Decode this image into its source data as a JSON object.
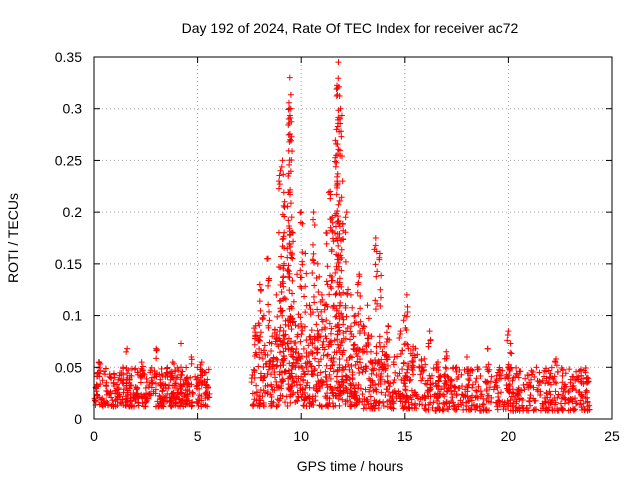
{
  "chart_data": {
    "type": "scatter",
    "title": "Day 192 of 2024, Rate Of TEC Index for receiver ac72",
    "xlabel": "GPS time / hours",
    "ylabel": "ROTI / TECUs",
    "xlim": [
      0,
      25
    ],
    "ylim": [
      0,
      0.35
    ],
    "xticks": [
      0,
      5,
      10,
      15,
      20,
      25
    ],
    "xtick_labels": [
      "0",
      "5",
      "10",
      "15",
      "20",
      "25"
    ],
    "yticks": [
      0,
      0.05,
      0.1,
      0.15,
      0.2,
      0.25,
      0.3,
      0.35
    ],
    "ytick_labels": [
      "0",
      "0.05",
      "0.1",
      "0.15",
      "0.2",
      "0.25",
      "0.3",
      "0.35"
    ],
    "grid": true,
    "marker": "+",
    "color": "#ff0000",
    "series": [
      {
        "name": "ROTI",
        "points": [
          [
            0.1,
            0.03
          ],
          [
            0.2,
            0.045
          ],
          [
            0.25,
            0.055
          ],
          [
            0.4,
            0.02
          ],
          [
            0.6,
            0.035
          ],
          [
            0.8,
            0.025
          ],
          [
            1.0,
            0.04
          ],
          [
            1.2,
            0.03
          ],
          [
            1.4,
            0.05
          ],
          [
            1.6,
            0.068
          ],
          [
            1.7,
            0.035
          ],
          [
            1.9,
            0.025
          ],
          [
            2.1,
            0.045
          ],
          [
            2.3,
            0.055
          ],
          [
            2.5,
            0.03
          ],
          [
            2.8,
            0.04
          ],
          [
            3.0,
            0.068
          ],
          [
            3.2,
            0.035
          ],
          [
            3.5,
            0.045
          ],
          [
            3.8,
            0.055
          ],
          [
            4.0,
            0.03
          ],
          [
            4.2,
            0.05
          ],
          [
            4.5,
            0.035
          ],
          [
            4.7,
            0.06
          ],
          [
            5.0,
            0.04
          ],
          [
            5.2,
            0.055
          ],
          [
            5.4,
            0.045
          ],
          [
            5.5,
            0.03
          ],
          [
            4.2,
            0.073
          ],
          [
            2.6,
            0.02
          ],
          [
            7.8,
            0.09
          ],
          [
            8.0,
            0.13
          ],
          [
            8.2,
            0.1
          ],
          [
            8.4,
            0.155
          ],
          [
            8.6,
            0.08
          ],
          [
            8.8,
            0.12
          ],
          [
            9.0,
            0.24
          ],
          [
            9.1,
            0.25
          ],
          [
            9.2,
            0.21
          ],
          [
            9.4,
            0.29
          ],
          [
            9.45,
            0.33
          ],
          [
            9.5,
            0.3
          ],
          [
            9.6,
            0.18
          ],
          [
            9.8,
            0.14
          ],
          [
            10.0,
            0.2
          ],
          [
            10.2,
            0.16
          ],
          [
            10.4,
            0.11
          ],
          [
            10.6,
            0.2
          ],
          [
            10.8,
            0.15
          ],
          [
            11.0,
            0.12
          ],
          [
            11.2,
            0.18
          ],
          [
            11.4,
            0.22
          ],
          [
            11.5,
            0.195
          ],
          [
            11.7,
            0.28
          ],
          [
            11.75,
            0.32
          ],
          [
            11.8,
            0.345
          ],
          [
            11.9,
            0.3
          ],
          [
            12.0,
            0.23
          ],
          [
            12.2,
            0.2
          ],
          [
            12.4,
            0.12
          ],
          [
            12.6,
            0.1
          ],
          [
            12.8,
            0.14
          ],
          [
            13.0,
            0.09
          ],
          [
            13.2,
            0.11
          ],
          [
            13.4,
            0.08
          ],
          [
            13.6,
            0.175
          ],
          [
            13.8,
            0.16
          ],
          [
            14.0,
            0.07
          ],
          [
            14.2,
            0.09
          ],
          [
            14.5,
            0.06
          ],
          [
            14.8,
            0.085
          ],
          [
            15.0,
            0.1
          ],
          [
            15.1,
            0.12
          ],
          [
            15.4,
            0.07
          ],
          [
            15.8,
            0.05
          ],
          [
            16.2,
            0.085
          ],
          [
            16.6,
            0.055
          ],
          [
            17.0,
            0.065
          ],
          [
            17.5,
            0.05
          ],
          [
            18.0,
            0.06
          ],
          [
            18.5,
            0.05
          ],
          [
            19.0,
            0.068
          ],
          [
            19.5,
            0.045
          ],
          [
            20.0,
            0.085
          ],
          [
            20.1,
            0.073
          ],
          [
            20.5,
            0.04
          ],
          [
            21.0,
            0.035
          ],
          [
            21.5,
            0.045
          ],
          [
            22.0,
            0.04
          ],
          [
            22.3,
            0.058
          ],
          [
            22.7,
            0.03
          ],
          [
            23.0,
            0.035
          ],
          [
            23.5,
            0.048
          ],
          [
            23.8,
            0.04
          ]
        ]
      }
    ]
  }
}
